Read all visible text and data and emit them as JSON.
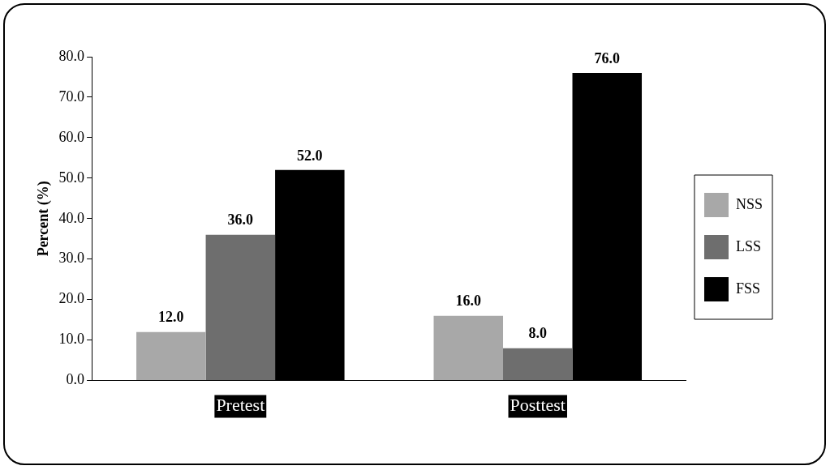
{
  "chart_data": {
    "type": "bar",
    "categories": [
      "Pretest",
      "Posttest"
    ],
    "ylabel": "Percent (%)",
    "series": [
      {
        "name": "NSS",
        "color": "#a8a8a8",
        "values": [
          12.0,
          16.0
        ],
        "value_labels": [
          "12.0",
          "16.0"
        ]
      },
      {
        "name": "LSS",
        "color": "#6e6e6e",
        "values": [
          36.0,
          8.0
        ],
        "value_labels": [
          "36.0",
          "8.0"
        ]
      },
      {
        "name": "FSS",
        "color": "#000000",
        "values": [
          52.0,
          76.0
        ],
        "value_labels": [
          "52.0",
          "76.0"
        ]
      }
    ],
    "ylim": [
      0,
      80
    ],
    "yticks": [
      {
        "value": 0,
        "label": "0.0"
      },
      {
        "value": 10,
        "label": "10.0"
      },
      {
        "value": 20,
        "label": "20.0"
      },
      {
        "value": 30,
        "label": "30.0"
      },
      {
        "value": 40,
        "label": "40.0"
      },
      {
        "value": 50,
        "label": "50.0"
      },
      {
        "value": 60,
        "label": "60.0"
      },
      {
        "value": 70,
        "label": "70.0"
      },
      {
        "value": 80,
        "label": "80.0"
      }
    ],
    "grid": false,
    "legend": "right"
  }
}
